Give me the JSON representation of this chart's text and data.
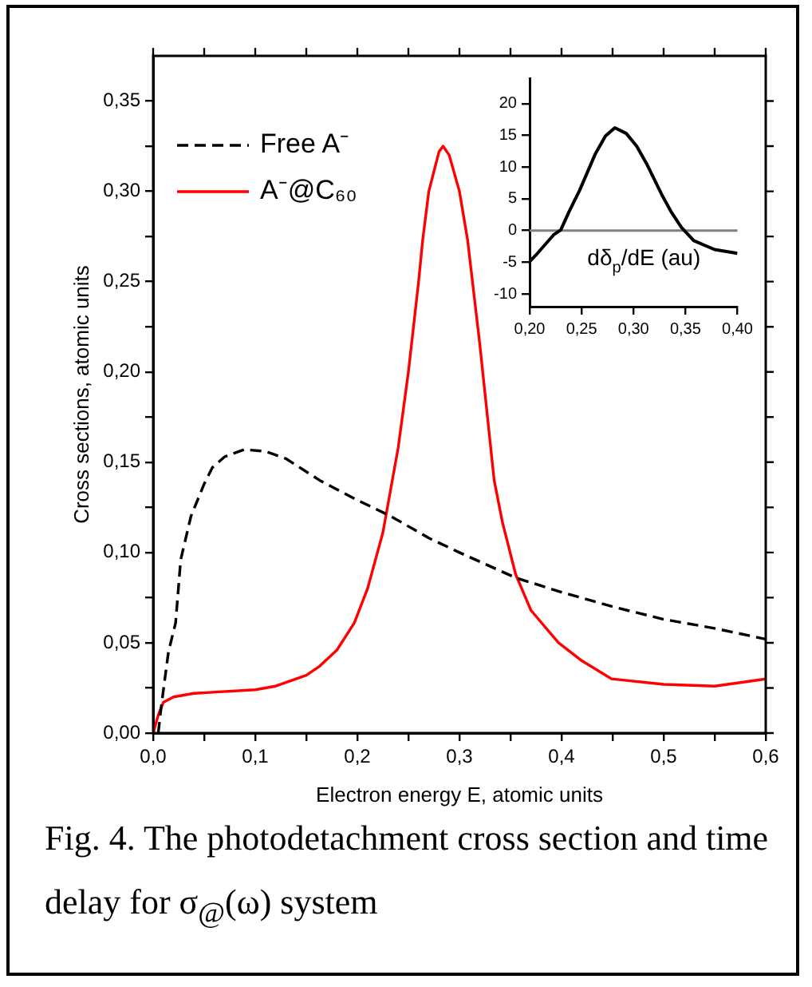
{
  "chart_data": [
    {
      "type": "line",
      "xlabel": "Electron energy E, atomic units",
      "ylabel": "Cross sections, atomic units",
      "xlim": [
        0,
        0.6
      ],
      "ylim": [
        0,
        0.375
      ],
      "xticks": [
        {
          "value": 0,
          "label": "0,0"
        },
        {
          "value": 0.05,
          "label": null
        },
        {
          "value": 0.1,
          "label": "0,1"
        },
        {
          "value": 0.15,
          "label": null
        },
        {
          "value": 0.2,
          "label": "0,2"
        },
        {
          "value": 0.25,
          "label": null
        },
        {
          "value": 0.3,
          "label": "0,3"
        },
        {
          "value": 0.35,
          "label": null
        },
        {
          "value": 0.4,
          "label": "0,4"
        },
        {
          "value": 0.45,
          "label": null
        },
        {
          "value": 0.5,
          "label": "0,5"
        },
        {
          "value": 0.55,
          "label": null
        },
        {
          "value": 0.6,
          "label": "0,6"
        }
      ],
      "yticks": [
        {
          "value": 0,
          "label": "0,00"
        },
        {
          "value": 0.025,
          "label": null
        },
        {
          "value": 0.05,
          "label": "0,05"
        },
        {
          "value": 0.075,
          "label": null
        },
        {
          "value": 0.1,
          "label": "0,10"
        },
        {
          "value": 0.125,
          "label": null
        },
        {
          "value": 0.15,
          "label": "0,15"
        },
        {
          "value": 0.175,
          "label": null
        },
        {
          "value": 0.2,
          "label": "0,20"
        },
        {
          "value": 0.225,
          "label": null
        },
        {
          "value": 0.25,
          "label": "0,25"
        },
        {
          "value": 0.275,
          "label": null
        },
        {
          "value": 0.3,
          "label": "0,30"
        },
        {
          "value": 0.325,
          "label": null
        },
        {
          "value": 0.35,
          "label": "0,35"
        }
      ],
      "grid": false,
      "legend": "top left",
      "marker": "none",
      "series": [
        {
          "name": "Free A⁻",
          "color": "#000000",
          "line_style": "dashed",
          "x": [
            0.005,
            0.008,
            0.011,
            0.015,
            0.022,
            0.027,
            0.037,
            0.05,
            0.058,
            0.07,
            0.089,
            0.11,
            0.13,
            0.163,
            0.2,
            0.233,
            0.27,
            0.3,
            0.355,
            0.4,
            0.45,
            0.5,
            0.55,
            0.6
          ],
          "values": [
            0.0,
            0.015,
            0.028,
            0.045,
            0.061,
            0.096,
            0.12,
            0.138,
            0.147,
            0.153,
            0.157,
            0.156,
            0.152,
            0.14,
            0.129,
            0.12,
            0.108,
            0.1,
            0.086,
            0.078,
            0.07,
            0.063,
            0.058,
            0.052
          ]
        },
        {
          "name": "A⁻@C₆₀",
          "color": "#ff0000",
          "line_style": "solid",
          "x": [
            0,
            0.005,
            0.01,
            0.02,
            0.04,
            0.1,
            0.12,
            0.15,
            0.163,
            0.18,
            0.197,
            0.21,
            0.225,
            0.24,
            0.25,
            0.26,
            0.264,
            0.27,
            0.28,
            0.284,
            0.29,
            0.3,
            0.308,
            0.32,
            0.334,
            0.342,
            0.355,
            0.37,
            0.397,
            0.42,
            0.449,
            0.5,
            0.55,
            0.6
          ],
          "values": [
            0,
            0.01,
            0.017,
            0.02,
            0.022,
            0.024,
            0.026,
            0.032,
            0.037,
            0.046,
            0.061,
            0.08,
            0.111,
            0.158,
            0.2,
            0.25,
            0.273,
            0.3,
            0.322,
            0.325,
            0.32,
            0.3,
            0.273,
            0.215,
            0.14,
            0.117,
            0.088,
            0.068,
            0.05,
            0.04,
            0.03,
            0.027,
            0.026,
            0.03
          ]
        }
      ],
      "annotations": [
        "Fig. 4. The photodetachment cross section and time delay for σ$_{@}$(ω) system"
      ]
    },
    {
      "type": "line",
      "xlim": [
        0.2,
        0.4
      ],
      "ylim": [
        -12,
        24
      ],
      "xticks": [
        {
          "value": 0.2,
          "label": "0,20"
        },
        {
          "value": 0.25,
          "label": "0,25"
        },
        {
          "value": 0.3,
          "label": "0,30"
        },
        {
          "value": 0.35,
          "label": "0,35"
        },
        {
          "value": 0.4,
          "label": "0,40"
        }
      ],
      "yticks": [
        -10,
        -5,
        0,
        5,
        10,
        15,
        20
      ],
      "grid": false,
      "marker": "none",
      "series": [
        {
          "color": "#000000",
          "x": [
            0.2,
            0.2075,
            0.223,
            0.23,
            0.238,
            0.248,
            0.263,
            0.273,
            0.282,
            0.293,
            0.303,
            0.313,
            0.328,
            0.336,
            0.346,
            0.358,
            0.378,
            0.4
          ],
          "values": [
            -4.9,
            -3.6,
            -0.7,
            0.1,
            3,
            6.3,
            12,
            14.9,
            16.2,
            15.3,
            13.3,
            10.4,
            5.4,
            3,
            0.5,
            -1.6,
            -3,
            -3.6
          ]
        }
      ],
      "ref_lines": [
        {
          "axis": "y",
          "value": 0,
          "color": "#808080"
        }
      ],
      "annotations": [
        "dδ$_{p}$/dE (au)"
      ]
    }
  ]
}
